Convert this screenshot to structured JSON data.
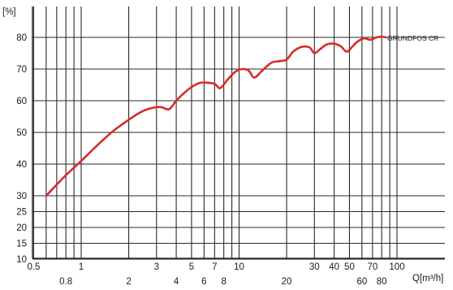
{
  "chart_data": {
    "type": "line",
    "title": "",
    "ylabel": "[%]",
    "xlabel": "Q[m³/h]",
    "x_scale": "log",
    "xlim": [
      0.5,
      100
    ],
    "ylim": [
      10,
      85
    ],
    "grid": true,
    "x_ticks_upper": [
      "0.5",
      "1",
      "3",
      "5",
      "7",
      "10",
      "30",
      "40",
      "50",
      "70",
      "100"
    ],
    "x_ticks_lower": [
      "0.8",
      "2",
      "4",
      "6",
      "8",
      "20",
      "60",
      "80"
    ],
    "y_ticks": [
      "10",
      "15",
      "20",
      "25",
      "30",
      "40",
      "50",
      "60",
      "70",
      "80"
    ],
    "annotation": "GRUNDFOS CR",
    "series": [
      {
        "color": "#d62b2b",
        "x": [
          0.6,
          0.7,
          0.8,
          1.0,
          1.3,
          1.6,
          2.0,
          2.4,
          2.8,
          3.2,
          3.6,
          4.0,
          4.5,
          5.0,
          5.6,
          6.3,
          7.0,
          7.6,
          8.5,
          9.5,
          10.5,
          11.5,
          12.5,
          14.0,
          16.0,
          18.0,
          20.0,
          22.0,
          25.0,
          28.0,
          30.0,
          33.0,
          36.0,
          40.0,
          44.0,
          48.0,
          52.0,
          56.0,
          62.0,
          68.0,
          74.0,
          80.0,
          85.0
        ],
        "y": [
          30.0,
          33.5,
          36.5,
          41.0,
          46.5,
          50.5,
          54.0,
          56.5,
          57.7,
          58.0,
          57.3,
          60.0,
          62.5,
          64.3,
          65.6,
          65.7,
          65.3,
          64.0,
          66.8,
          69.2,
          70.0,
          69.5,
          67.3,
          69.5,
          72.0,
          72.5,
          73.0,
          75.5,
          77.0,
          76.8,
          75.0,
          76.5,
          77.8,
          78.0,
          77.2,
          75.5,
          77.0,
          78.6,
          79.7,
          79.2,
          80.0,
          80.2,
          80.0
        ]
      }
    ]
  }
}
